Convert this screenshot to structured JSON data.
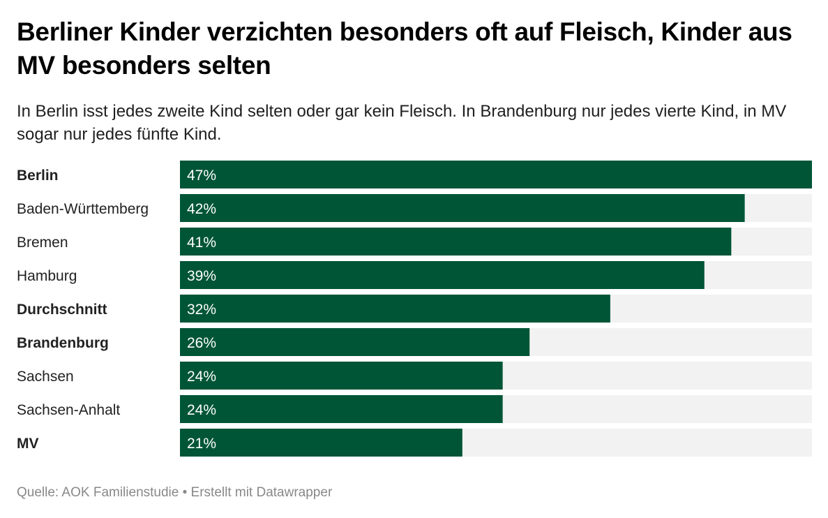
{
  "colors": {
    "bar": "#005537",
    "track": "#f2f2f2",
    "bar_label": "#ffffff",
    "category_label": "#222222",
    "footer": "#888888"
  },
  "chart_data": {
    "type": "bar",
    "orientation": "horizontal",
    "title": "Berliner Kinder verzichten besonders oft auf Fleisch, Kinder aus MV besonders selten",
    "subtitle": "In Berlin isst jedes zweite Kind selten oder gar kein Fleisch. In Brandenburg nur jedes vierte Kind, in MV sogar nur jedes fünfte Kind.",
    "categories": [
      "Berlin",
      "Baden-Württemberg",
      "Bremen",
      "Hamburg",
      "Durchschnitt",
      "Brandenburg",
      "Sachsen",
      "Sachsen-Anhalt",
      "MV"
    ],
    "values": [
      47,
      42,
      41,
      39,
      32,
      26,
      24,
      24,
      21
    ],
    "value_labels": [
      "47%",
      "42%",
      "41%",
      "39%",
      "32%",
      "26%",
      "24%",
      "24%",
      "21%"
    ],
    "highlighted": [
      "Berlin",
      "Durchschnitt",
      "Brandenburg",
      "MV"
    ],
    "xlim": [
      0,
      47
    ],
    "unit": "%",
    "grid": false,
    "legend": "none"
  },
  "footer": {
    "text": "Quelle: AOK Familienstudie • Erstellt mit Datawrapper"
  }
}
